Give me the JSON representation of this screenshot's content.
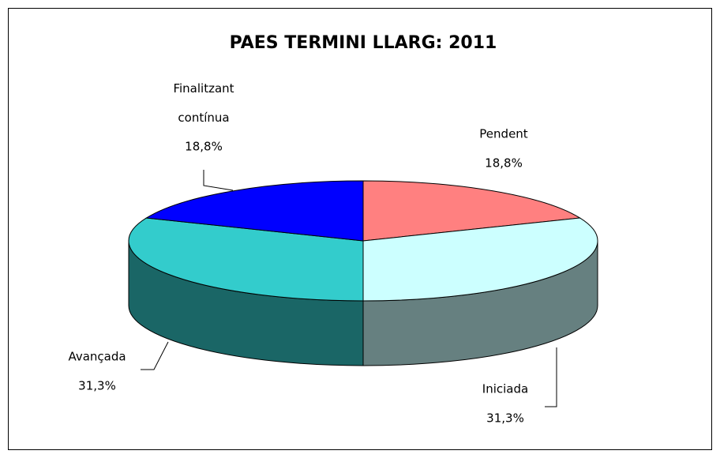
{
  "chart_data": {
    "type": "pie3d",
    "title": "PAES TERMINI LLARG: 2011",
    "categories": [
      "Pendent",
      "Iniciada",
      "Avançada",
      "Finalitzant contínua"
    ],
    "values": [
      18.8,
      31.3,
      31.3,
      18.8
    ],
    "value_labels": [
      "18,8%",
      "31,3%",
      "31,3%",
      "18,8%"
    ],
    "colors": [
      "#ff8080",
      "#ccffff",
      "#33cccc",
      "#0000ff"
    ]
  }
}
